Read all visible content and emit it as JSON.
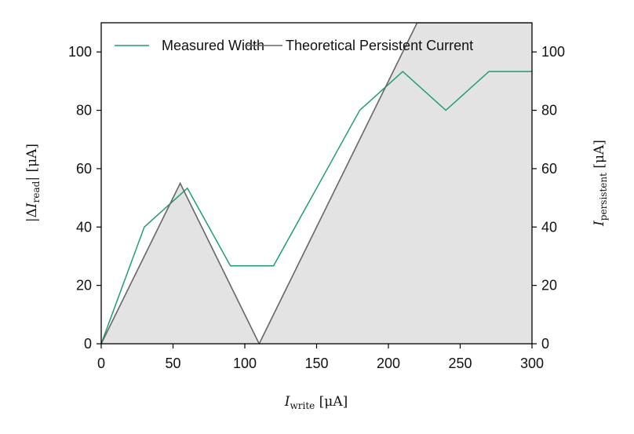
{
  "chart_data": {
    "type": "line",
    "title": "",
    "xlabel": {
      "symbol": "I",
      "subscript": "write",
      "unit": " [μA]"
    },
    "ylabel_left": {
      "prefix": "|Δ",
      "symbol": "I",
      "subscript": "read",
      "suffix": "| [μA]"
    },
    "ylabel_right": {
      "symbol": "I",
      "subscript": "persistent",
      "unit": " [μA]"
    },
    "xlim": [
      0,
      300
    ],
    "ylim_left": [
      0,
      110
    ],
    "ylim_right": [
      0,
      110
    ],
    "xticks": [
      0,
      50,
      100,
      150,
      200,
      250,
      300
    ],
    "yticks_left": [
      0,
      20,
      40,
      60,
      80,
      100
    ],
    "yticks_right": [
      0,
      20,
      40,
      60,
      80,
      100
    ],
    "grid": false,
    "legend_position": "top-left",
    "series": [
      {
        "name": "Measured Width",
        "axis": "left",
        "style": "line",
        "color": "#1b9e77",
        "x": [
          0,
          30,
          60,
          90,
          120,
          150,
          180,
          210,
          240,
          270,
          300
        ],
        "y": [
          0,
          40,
          53.3,
          26.7,
          26.7,
          53.3,
          80,
          93.3,
          80,
          93.3,
          93.3
        ]
      },
      {
        "name": "Theoretical Persistent Current",
        "axis": "right",
        "style": "filled-line",
        "color": "#666666",
        "fill": "#e3e3e3",
        "x": [
          0,
          55,
          110,
          220,
          300
        ],
        "y": [
          0,
          55,
          0,
          110,
          110
        ]
      }
    ]
  }
}
